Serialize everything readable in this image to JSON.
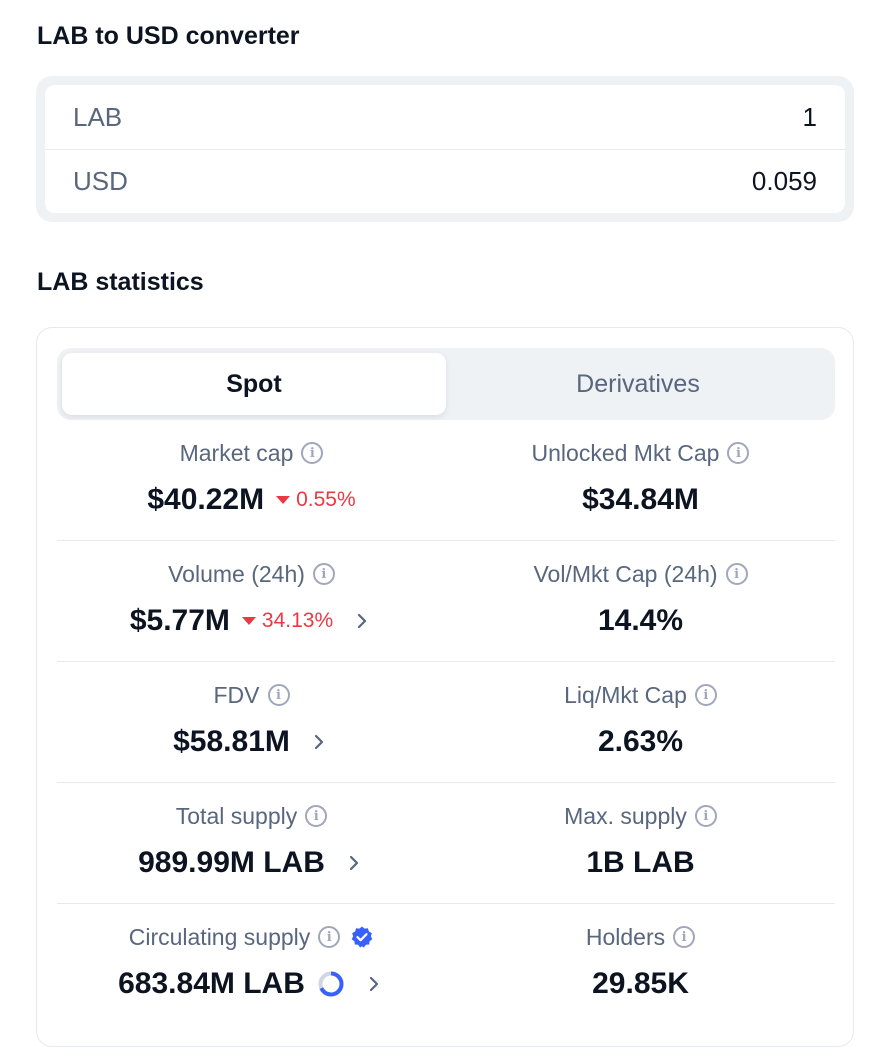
{
  "converter": {
    "title": "LAB to USD converter",
    "rows": [
      {
        "label": "LAB",
        "value": "1"
      },
      {
        "label": "USD",
        "value": "0.059"
      }
    ]
  },
  "statistics": {
    "title": "LAB statistics",
    "tabs": [
      {
        "label": "Spot",
        "active": true
      },
      {
        "label": "Derivatives",
        "active": false
      }
    ],
    "rows": [
      {
        "left": {
          "label": "Market cap",
          "value": "$40.22M",
          "change": "0.55%"
        },
        "right": {
          "label": "Unlocked Mkt Cap",
          "value": "$34.84M"
        }
      },
      {
        "left": {
          "label": "Volume (24h)",
          "value": "$5.77M",
          "change": "34.13%"
        },
        "right": {
          "label": "Vol/Mkt Cap (24h)",
          "value": "14.4%"
        }
      },
      {
        "left": {
          "label": "FDV",
          "value": "$58.81M"
        },
        "right": {
          "label": "Liq/Mkt Cap",
          "value": "2.63%"
        }
      },
      {
        "left": {
          "label": "Total supply",
          "value": "989.99M LAB"
        },
        "right": {
          "label": "Max. supply",
          "value": "1B LAB"
        }
      },
      {
        "left": {
          "label": "Circulating supply",
          "value": "683.84M LAB",
          "circulating_fraction": 0.68
        },
        "right": {
          "label": "Holders",
          "value": "29.85K"
        }
      }
    ]
  },
  "icons": {
    "info": "info-icon",
    "verified": "verified-badge-icon",
    "chevron": "chevron-right-icon",
    "caret": "caret-down-icon",
    "progress": "progress-ring-icon"
  },
  "colors": {
    "negative": "#ea3943",
    "verified": "#3861fb",
    "muted": "#58667e",
    "text": "#0d1421"
  }
}
